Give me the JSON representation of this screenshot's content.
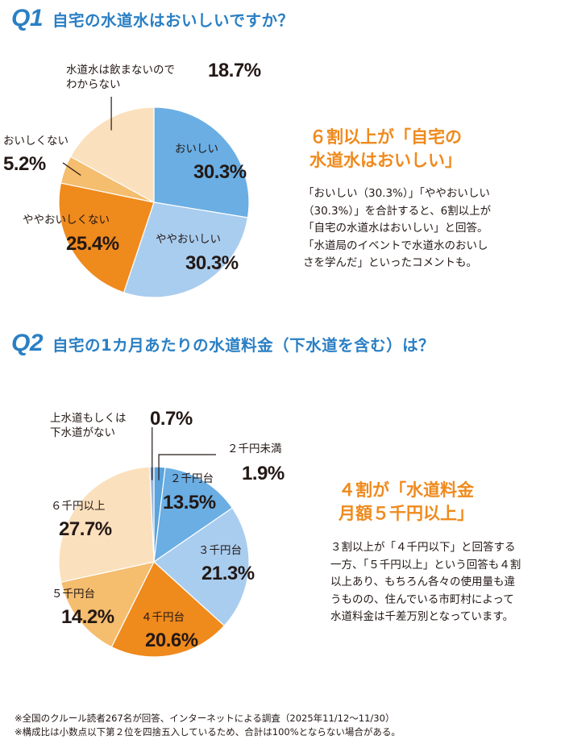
{
  "q1": {
    "number": "Q1",
    "question": "自宅の水道水はおいしいですか？",
    "headline": [
      "６割以上が「自宅の",
      "水道水はおいしい」"
    ],
    "body": [
      "「おいしい（30.3%）」「ややおいしい",
      "（30.3%）」を合計すると、6割以上が",
      "「自宅の水道水はおいしい」と回答。",
      "「水道局のイベントで水道水のおいし",
      "さを学んだ」といったコメントも。"
    ]
  },
  "q2": {
    "number": "Q2",
    "question": "自宅の1カ月あたりの水道料金（下水道を含む）は？",
    "headline": [
      "４割が「水道料金",
      "月額５千円以上」"
    ],
    "body": [
      "３割以上が「４千円以下」と回答する",
      "一方、「５千円以上」という回答も４割",
      "以上あり、もちろん各々の使用量も違",
      "うものの、住んでいる市町村によって",
      "水道料金は千差万別となっています。"
    ]
  },
  "chart_data": [
    {
      "type": "pie",
      "title": "自宅の水道水はおいしいですか？",
      "start": "12 o'clock, clockwise",
      "slices": [
        {
          "label": "おいしい",
          "label_lines": [
            "おいしい"
          ],
          "value": 30.3,
          "display": "30.3%",
          "color": "#6aaee3"
        },
        {
          "label": "ややおいしい",
          "label_lines": [
            "ややおいしい"
          ],
          "value": 30.3,
          "display": "30.3%",
          "color": "#a9cdef"
        },
        {
          "label": "ややおいしくない",
          "label_lines": [
            "ややおいしくない"
          ],
          "value": 25.4,
          "display": "25.4%",
          "color": "#ef8a1d"
        },
        {
          "label": "おいしくない",
          "label_lines": [
            "おいしくない"
          ],
          "value": 5.2,
          "display": "5.2%",
          "color": "#f5bd6e"
        },
        {
          "label": "水道水は飲まないのでわからない",
          "label_lines": [
            "水道水は飲まないので",
            "わからない"
          ],
          "value": 18.7,
          "display": "18.7%",
          "color": "#fbe0bd"
        }
      ]
    },
    {
      "type": "pie",
      "title": "自宅の1カ月あたりの水道料金（下水道を含む）は？",
      "start": "12 o'clock, clockwise",
      "slices": [
        {
          "label": "２千円未満",
          "label_lines": [
            "２千円未満"
          ],
          "value": 1.9,
          "display": "1.9%",
          "color": "#5aa3dc"
        },
        {
          "label": "２千円台",
          "label_lines": [
            "２千円台"
          ],
          "value": 13.5,
          "display": "13.5%",
          "color": "#6aaee3"
        },
        {
          "label": "３千円台",
          "label_lines": [
            "３千円台"
          ],
          "value": 21.3,
          "display": "21.3%",
          "color": "#a9cdef"
        },
        {
          "label": "４千円台",
          "label_lines": [
            "４千円台"
          ],
          "value": 20.6,
          "display": "20.6%",
          "color": "#ef8a1d"
        },
        {
          "label": "５千円台",
          "label_lines": [
            "５千円台"
          ],
          "value": 14.2,
          "display": "14.2%",
          "color": "#f5bd6e"
        },
        {
          "label": "６千円以上",
          "label_lines": [
            "６千円以上"
          ],
          "value": 27.7,
          "display": "27.7%",
          "color": "#fbe0bd"
        },
        {
          "label": "上水道もしくは下水道がない",
          "label_lines": [
            "上水道もしくは",
            "下水道がない"
          ],
          "value": 0.7,
          "display": "0.7%",
          "color": "#9ab3d8"
        }
      ]
    }
  ],
  "footnotes": [
    "※全国のクルール読者267名が回答、インターネットによる調査（2025年11/12〜11/30）",
    "※構成比は小数点以下第２位を四捨五入しているため、合計は100%とならない場合がある。"
  ]
}
